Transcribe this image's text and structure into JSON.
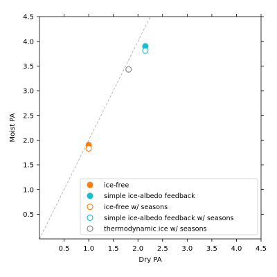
{
  "chart_data": {
    "type": "scatter",
    "xlabel": "Dry PA",
    "ylabel": "Moist PA",
    "xlim": [
      0,
      4.5
    ],
    "ylim": [
      0,
      4.5
    ],
    "x_ticks": [
      0.5,
      1.0,
      1.5,
      2.0,
      2.5,
      3.0,
      3.5,
      4.0,
      4.5
    ],
    "x_tick_labels": [
      "0.5",
      "1.0",
      "1.5",
      "2.0",
      "2.5",
      "3.0",
      "3.5",
      "4.0",
      "4.5"
    ],
    "y_ticks": [
      0.5,
      1.0,
      1.5,
      2.0,
      2.5,
      3.0,
      3.5,
      4.0,
      4.5
    ],
    "y_tick_labels": [
      "0.5",
      "1.0",
      "1.5",
      "2.0",
      "2.5",
      "3.0",
      "3.5",
      "4.0",
      "4.5"
    ],
    "grid": false,
    "legend_position": "lower-right",
    "reference_line": {
      "style": "dashed",
      "color": "#b0b0b0",
      "points": [
        [
          0,
          0
        ],
        [
          2.25,
          4.5
        ]
      ]
    },
    "series": [
      {
        "name": "ice-free",
        "marker": "filled-circle",
        "color": "#ff7f0e",
        "points": [
          {
            "x": 1.0,
            "y": 1.9
          }
        ]
      },
      {
        "name": "simple ice-albedo feedback",
        "marker": "filled-circle",
        "color": "#17becf",
        "points": [
          {
            "x": 2.15,
            "y": 3.9
          }
        ]
      },
      {
        "name": "ice-free w/ seasons",
        "marker": "open-circle",
        "color": "#ff7f0e",
        "points": [
          {
            "x": 1.0,
            "y": 1.83
          }
        ]
      },
      {
        "name": "simple ice-albedo feedback w/ seasons",
        "marker": "open-circle",
        "color": "#17becf",
        "points": [
          {
            "x": 2.15,
            "y": 3.81
          }
        ]
      },
      {
        "name": "thermodynamic ice w/ seasons",
        "marker": "open-circle",
        "color": "#7f7f7f",
        "points": [
          {
            "x": 1.81,
            "y": 3.43
          }
        ]
      }
    ]
  }
}
